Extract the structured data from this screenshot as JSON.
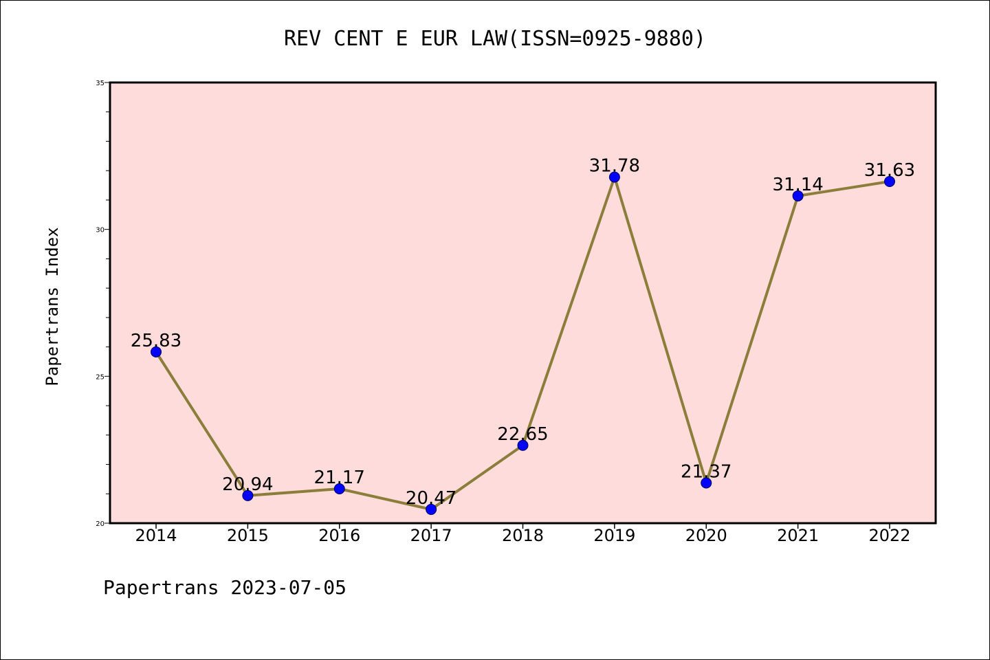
{
  "chart_data": {
    "type": "line",
    "title": "REV CENT E EUR LAW(ISSN=0925-9880)",
    "xlabel": "",
    "ylabel": "Papertrans Index",
    "categories": [
      "2014",
      "2015",
      "2016",
      "2017",
      "2018",
      "2019",
      "2020",
      "2021",
      "2022"
    ],
    "values": [
      25.83,
      20.94,
      21.17,
      20.47,
      22.65,
      31.78,
      21.37,
      31.14,
      31.63
    ],
    "value_labels": [
      "25.83",
      "20.94",
      "21.17",
      "20.47",
      "22.65",
      "31.78",
      "21.37",
      "31.14",
      "31.63"
    ],
    "ylim": [
      20,
      35
    ],
    "yticks": [
      20,
      25,
      30,
      35
    ],
    "ytick_labels": [
      "20",
      "25",
      "30",
      "35"
    ],
    "grid": false,
    "legend": "none",
    "colors": {
      "plot_background": "#ffdcdc",
      "line": "#8b7d3a",
      "marker": "#0000ff",
      "axis": "#000000"
    }
  },
  "footer": "Papertrans 2023-07-05"
}
